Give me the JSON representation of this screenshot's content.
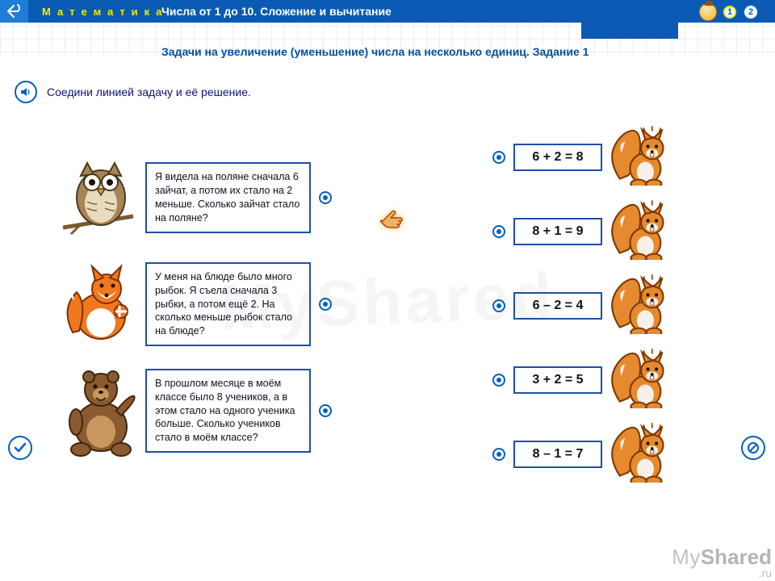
{
  "header": {
    "subject": "Математика",
    "chapter": "Числа от 1 до 10. Сложение и вычитание",
    "pages": [
      "1",
      "2"
    ],
    "active_page_index": 0
  },
  "subheader": "Задачи на увеличение (уменьшение) числа на несколько единиц. Задание 1",
  "instruction": "Соедини линией задачу и её решение.",
  "colors": {
    "primary_blue": "#0a5ab4",
    "accent_yellow": "#ffe600",
    "box_border": "#1e4fa8",
    "text_dark": "#10107a",
    "grid": "#e8f0f8",
    "squirrel_body": "#e58a2e",
    "squirrel_light": "#f6f0e8",
    "owl_body": "#a88454",
    "fox_body": "#f07820",
    "bear_body": "#8a5a30"
  },
  "problems": [
    {
      "animal": "owl",
      "text": "Я видела на поляне сначала 6 зайчат, а потом их стало на 2 меньше. Сколько зайчат стало на поляне?"
    },
    {
      "animal": "fox",
      "text": "У меня на блюде было много рыбок. Я съела сначала 3 рыбки, а потом ещё 2. На сколько меньше рыбок стало на блюде?"
    },
    {
      "animal": "bear",
      "text": "В прошлом месяце в моём классе было 8 учеников, а в этом стало на одного ученика больше. Сколько учеников стало в моём классе?"
    }
  ],
  "answers": [
    "6 + 2 = 8",
    "8 + 1 = 9",
    "6 – 2 = 4",
    "3 + 2 = 5",
    "8 – 1 = 7"
  ],
  "watermark": {
    "part1": "My",
    "part2": "Shared",
    "suffix": ".ru",
    "big": "MyShared"
  }
}
